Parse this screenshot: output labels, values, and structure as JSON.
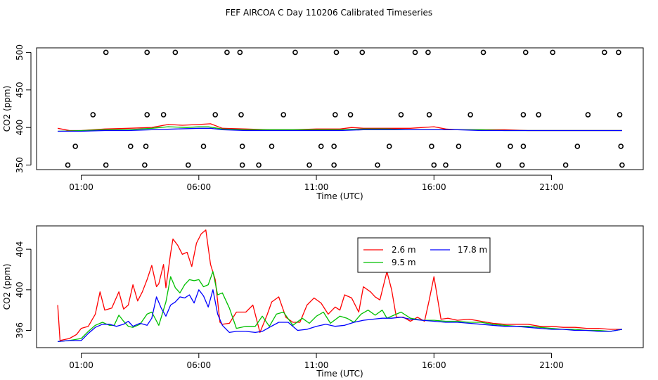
{
  "title": "FEF AIRCOA C  Day 110206  Calibrated Timeseries",
  "chart_data": [
    {
      "type": "scatter+line",
      "panel": "top",
      "xlabel": "Time (UTC)",
      "ylabel": "CO2 (ppm)",
      "x_unit": "hours UTC",
      "xlim": [
        -0.9,
        24.9
      ],
      "ylim": [
        344,
        506
      ],
      "x_tick_hours": [
        1,
        6,
        11,
        16,
        21
      ],
      "x_tick_labels": [
        "01:00",
        "06:00",
        "11:00",
        "16:00",
        "21:00"
      ],
      "y_ticks": [
        350,
        400,
        450,
        500
      ],
      "y_tick_labels": [
        "350",
        "400",
        "450",
        "500"
      ],
      "calibration_points": [
        {
          "x": 0.43,
          "y": 350
        },
        {
          "x": 2.05,
          "y": 350
        },
        {
          "x": 3.7,
          "y": 350
        },
        {
          "x": 5.55,
          "y": 350
        },
        {
          "x": 7.85,
          "y": 350
        },
        {
          "x": 8.55,
          "y": 350
        },
        {
          "x": 10.7,
          "y": 350
        },
        {
          "x": 11.75,
          "y": 350
        },
        {
          "x": 13.6,
          "y": 350
        },
        {
          "x": 16.0,
          "y": 350
        },
        {
          "x": 16.5,
          "y": 350
        },
        {
          "x": 18.75,
          "y": 350
        },
        {
          "x": 19.75,
          "y": 350
        },
        {
          "x": 21.6,
          "y": 350
        },
        {
          "x": 24.0,
          "y": 350
        },
        {
          "x": 0.75,
          "y": 375
        },
        {
          "x": 3.1,
          "y": 375
        },
        {
          "x": 3.75,
          "y": 375
        },
        {
          "x": 6.2,
          "y": 375
        },
        {
          "x": 7.85,
          "y": 375
        },
        {
          "x": 9.1,
          "y": 375
        },
        {
          "x": 11.2,
          "y": 375
        },
        {
          "x": 11.75,
          "y": 375
        },
        {
          "x": 14.1,
          "y": 375
        },
        {
          "x": 15.9,
          "y": 375
        },
        {
          "x": 17.05,
          "y": 375
        },
        {
          "x": 19.25,
          "y": 375
        },
        {
          "x": 19.8,
          "y": 375
        },
        {
          "x": 22.1,
          "y": 375
        },
        {
          "x": 23.95,
          "y": 375
        },
        {
          "x": 1.5,
          "y": 417
        },
        {
          "x": 3.8,
          "y": 417
        },
        {
          "x": 4.5,
          "y": 417
        },
        {
          "x": 6.7,
          "y": 417
        },
        {
          "x": 7.8,
          "y": 417
        },
        {
          "x": 9.6,
          "y": 417
        },
        {
          "x": 11.8,
          "y": 417
        },
        {
          "x": 12.45,
          "y": 417
        },
        {
          "x": 14.6,
          "y": 417
        },
        {
          "x": 15.8,
          "y": 417
        },
        {
          "x": 17.55,
          "y": 417
        },
        {
          "x": 19.8,
          "y": 417
        },
        {
          "x": 20.45,
          "y": 417
        },
        {
          "x": 22.55,
          "y": 417
        },
        {
          "x": 23.9,
          "y": 417
        },
        {
          "x": 2.05,
          "y": 500
        },
        {
          "x": 3.8,
          "y": 500
        },
        {
          "x": 5.0,
          "y": 500
        },
        {
          "x": 7.2,
          "y": 500
        },
        {
          "x": 7.75,
          "y": 500
        },
        {
          "x": 10.1,
          "y": 500
        },
        {
          "x": 11.85,
          "y": 500
        },
        {
          "x": 12.95,
          "y": 500
        },
        {
          "x": 15.2,
          "y": 500
        },
        {
          "x": 15.75,
          "y": 500
        },
        {
          "x": 18.1,
          "y": 500
        },
        {
          "x": 19.9,
          "y": 500
        },
        {
          "x": 21.05,
          "y": 500
        },
        {
          "x": 23.25,
          "y": 500
        },
        {
          "x": 23.85,
          "y": 500
        }
      ],
      "series": [
        {
          "name": "2.6 m",
          "color": "#ff0000",
          "x": [
            0,
            0.5,
            1,
            2,
            3,
            4,
            4.7,
            5.3,
            6,
            6.5,
            7,
            8,
            9,
            10,
            11,
            12,
            12.5,
            13,
            14,
            15,
            16,
            16.5,
            17,
            18,
            19,
            20,
            21,
            22,
            23,
            24
          ],
          "values": [
            399,
            396,
            396,
            398,
            399,
            400,
            404,
            403,
            404,
            405,
            399,
            398,
            397,
            397,
            398,
            398,
            400,
            399,
            399,
            399,
            401,
            398,
            397,
            397,
            397,
            396,
            396,
            396,
            396,
            396
          ]
        },
        {
          "name": "9.5 m",
          "color": "#00c000",
          "x": [
            0,
            1,
            2,
            3,
            4,
            4.7,
            5.5,
            6,
            6.4,
            7,
            8,
            9,
            10,
            11,
            12,
            13,
            14,
            15,
            16,
            17,
            18,
            19,
            20,
            21,
            22,
            23,
            24
          ],
          "values": [
            395,
            396,
            397,
            397,
            399,
            401,
            400,
            401,
            401,
            398,
            397,
            397,
            397,
            397,
            397,
            398,
            398,
            397,
            397,
            397,
            397,
            396,
            396,
            396,
            396,
            396,
            396
          ]
        },
        {
          "name": "17.8 m",
          "color": "#0000ff",
          "x": [
            0,
            1,
            2,
            3,
            4,
            5,
            6,
            6.5,
            7,
            8,
            9,
            10,
            11,
            12,
            13,
            14,
            15,
            16,
            17,
            18,
            19,
            20,
            21,
            22,
            23,
            24
          ],
          "values": [
            395,
            395,
            396,
            396,
            397,
            398,
            399,
            399,
            397,
            396,
            396,
            396,
            396,
            396,
            397,
            397,
            397,
            397,
            397,
            396,
            396,
            396,
            396,
            396,
            396,
            396
          ]
        }
      ]
    },
    {
      "type": "line",
      "panel": "bottom",
      "xlabel": "Time (UTC)",
      "ylabel": "CO2 (ppm)",
      "x_unit": "hours UTC",
      "xlim": [
        -0.9,
        24.9
      ],
      "ylim": [
        394.3,
        406.3
      ],
      "x_tick_hours": [
        1,
        6,
        11,
        16,
        21
      ],
      "x_tick_labels": [
        "01:00",
        "06:00",
        "11:00",
        "16:00",
        "21:00"
      ],
      "y_ticks": [
        396,
        400,
        404
      ],
      "y_tick_labels": [
        "396",
        "400",
        "404"
      ],
      "legend_position": "top-center",
      "series": [
        {
          "name": "2.6 m",
          "color": "#ff0000",
          "x": [
            0,
            0.1,
            0.5,
            0.8,
            1,
            1.3,
            1.6,
            1.8,
            2,
            2.3,
            2.6,
            2.8,
            3,
            3.2,
            3.4,
            3.6,
            3.8,
            4,
            4.2,
            4.3,
            4.5,
            4.6,
            4.8,
            4.9,
            5.1,
            5.3,
            5.5,
            5.7,
            5.9,
            6.1,
            6.3,
            6.5,
            6.7,
            6.9,
            7,
            7.3,
            7.6,
            7.9,
            8,
            8.3,
            8.6,
            8.9,
            9.1,
            9.4,
            9.7,
            10,
            10.3,
            10.6,
            10.9,
            11.2,
            11.5,
            11.8,
            12,
            12.2,
            12.5,
            12.8,
            13,
            13.3,
            13.5,
            13.7,
            14,
            14.2,
            14.4,
            14.7,
            15,
            15.3,
            15.6,
            15.8,
            16,
            16.3,
            16.6,
            17,
            17.5,
            18,
            18.5,
            19,
            19.5,
            20,
            20.5,
            21,
            21.5,
            22,
            22.5,
            23,
            23.5,
            24
          ],
          "values": [
            398.5,
            395,
            395.2,
            395.6,
            396.2,
            396.4,
            397.6,
            399.8,
            398,
            398.2,
            399.8,
            398.1,
            398.5,
            400.5,
            398.9,
            399.8,
            401,
            402.4,
            400.3,
            400.6,
            402.5,
            400.2,
            403.6,
            405,
            404.4,
            403.5,
            403.7,
            402.3,
            404.6,
            405.5,
            405.9,
            402.5,
            401,
            396.8,
            396.6,
            396.7,
            397.8,
            397.8,
            397.8,
            398.5,
            395.8,
            397.5,
            398.8,
            399.3,
            397.3,
            396.8,
            396.8,
            398.5,
            399.2,
            398.7,
            397.6,
            398.3,
            398,
            399.5,
            399.2,
            397.8,
            400.3,
            399.8,
            399.3,
            399,
            401.8,
            400,
            397.3,
            397.3,
            396.9,
            397.3,
            396.9,
            399,
            401.3,
            397.1,
            397.2,
            397,
            397.1,
            396.9,
            396.7,
            396.6,
            396.6,
            396.6,
            396.4,
            396.4,
            396.3,
            396.3,
            396.2,
            396.2,
            396.1,
            396.1
          ]
        },
        {
          "name": "9.5 m",
          "color": "#00c000",
          "x": [
            0,
            0.5,
            1,
            1.3,
            1.6,
            1.9,
            2.2,
            2.4,
            2.6,
            2.8,
            3,
            3.2,
            3.5,
            3.8,
            4,
            4.3,
            4.6,
            4.8,
            5,
            5.2,
            5.4,
            5.6,
            5.8,
            6,
            6.2,
            6.4,
            6.6,
            6.8,
            7,
            7.3,
            7.6,
            8,
            8.4,
            8.7,
            9,
            9.3,
            9.6,
            10,
            10.4,
            10.7,
            11,
            11.3,
            11.6,
            12,
            12.3,
            12.6,
            12.9,
            13.2,
            13.5,
            13.8,
            14,
            14.3,
            14.6,
            15,
            15.5,
            16,
            16.5,
            17,
            17.5,
            18,
            18.5,
            19,
            19.5,
            20,
            20.5,
            21,
            21.5,
            22,
            22.5,
            23,
            23.5,
            24
          ],
          "values": [
            394.9,
            395,
            395.2,
            395.9,
            396.5,
            396.8,
            396.5,
            396.5,
            397.5,
            396.9,
            396.4,
            396.3,
            396.6,
            397.6,
            397.8,
            396.5,
            398.8,
            401.3,
            400.2,
            399.7,
            400.5,
            401,
            400.9,
            401,
            400.3,
            400.5,
            401.8,
            399.5,
            399.7,
            398.2,
            396.2,
            396.4,
            396.4,
            397.4,
            396.4,
            397.6,
            397.8,
            396.5,
            397.2,
            396.7,
            397.4,
            397.8,
            396.7,
            397.4,
            397.2,
            396.8,
            397.6,
            398,
            397.5,
            398,
            397.2,
            397.5,
            397.8,
            397.2,
            397,
            397,
            396.9,
            396.9,
            396.8,
            396.8,
            396.6,
            396.5,
            396.4,
            396.4,
            396.3,
            396.2,
            396.1,
            396.1,
            396,
            396,
            395.9,
            396.1
          ]
        },
        {
          "name": "17.8 m",
          "color": "#0000ff",
          "x": [
            0,
            0.5,
            1,
            1.3,
            1.6,
            1.9,
            2.2,
            2.5,
            2.8,
            3,
            3.2,
            3.5,
            3.8,
            4,
            4.2,
            4.4,
            4.6,
            4.8,
            5,
            5.2,
            5.4,
            5.6,
            5.8,
            6,
            6.2,
            6.4,
            6.6,
            6.8,
            7,
            7.3,
            7.6,
            8,
            8.4,
            8.7,
            9,
            9.4,
            9.8,
            10.2,
            10.6,
            11,
            11.4,
            11.8,
            12.2,
            12.6,
            13,
            13.4,
            13.8,
            14.2,
            14.6,
            15,
            15.5,
            16,
            16.5,
            17,
            17.5,
            18,
            18.5,
            19,
            19.5,
            20,
            20.5,
            21,
            21.5,
            22,
            22.5,
            23,
            23.5,
            24
          ],
          "values": [
            394.9,
            395,
            395,
            395.7,
            396.3,
            396.6,
            396.6,
            396.4,
            396.6,
            396.9,
            396.4,
            396.7,
            396.5,
            397.2,
            399.3,
            398.2,
            397.4,
            398.5,
            398.8,
            399.3,
            399.2,
            399.5,
            398.7,
            400,
            399.4,
            398.3,
            400,
            397.6,
            396.5,
            395.8,
            395.9,
            395.9,
            395.8,
            395.9,
            396.3,
            396.8,
            396.8,
            396,
            396.1,
            396.4,
            396.6,
            396.4,
            396.5,
            396.8,
            397,
            397.1,
            397.2,
            397.2,
            397.3,
            397.1,
            397,
            396.9,
            396.8,
            396.8,
            396.7,
            396.6,
            396.5,
            396.4,
            396.4,
            396.3,
            396.2,
            396.1,
            396.1,
            396,
            396,
            395.9,
            395.9,
            396.1
          ]
        }
      ]
    }
  ]
}
